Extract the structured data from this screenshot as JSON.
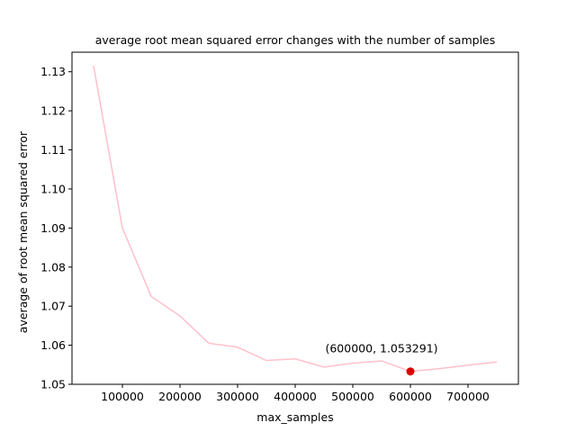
{
  "chart_data": {
    "type": "line",
    "title": "average root mean squared error changes with the number of samples",
    "xlabel": "max_samples",
    "ylabel": "average of root mean squared error",
    "xlim": [
      12500,
      787500
    ],
    "ylim": [
      1.05,
      1.135
    ],
    "xticks": [
      100000,
      200000,
      300000,
      400000,
      500000,
      600000,
      700000
    ],
    "yticks": [
      1.05,
      1.06,
      1.07,
      1.08,
      1.09,
      1.1,
      1.11,
      1.12,
      1.13
    ],
    "grid": false,
    "line_color": "#ffc0cb",
    "marker_color": "#dd0000",
    "series": [
      {
        "x": [
          50000,
          100000,
          150000,
          200000,
          250000,
          300000,
          350000,
          400000,
          450000,
          500000,
          550000,
          600000,
          650000,
          700000,
          750000
        ],
        "y": [
          1.1315,
          1.09,
          1.0725,
          1.0675,
          1.0605,
          1.0595,
          1.0561,
          1.0565,
          1.0544,
          1.0554,
          1.056,
          1.053291,
          1.054,
          1.0549,
          1.0557
        ]
      }
    ],
    "highlight": {
      "x": 600000,
      "y": 1.053291,
      "label": "(600000, 1.053291)"
    }
  }
}
